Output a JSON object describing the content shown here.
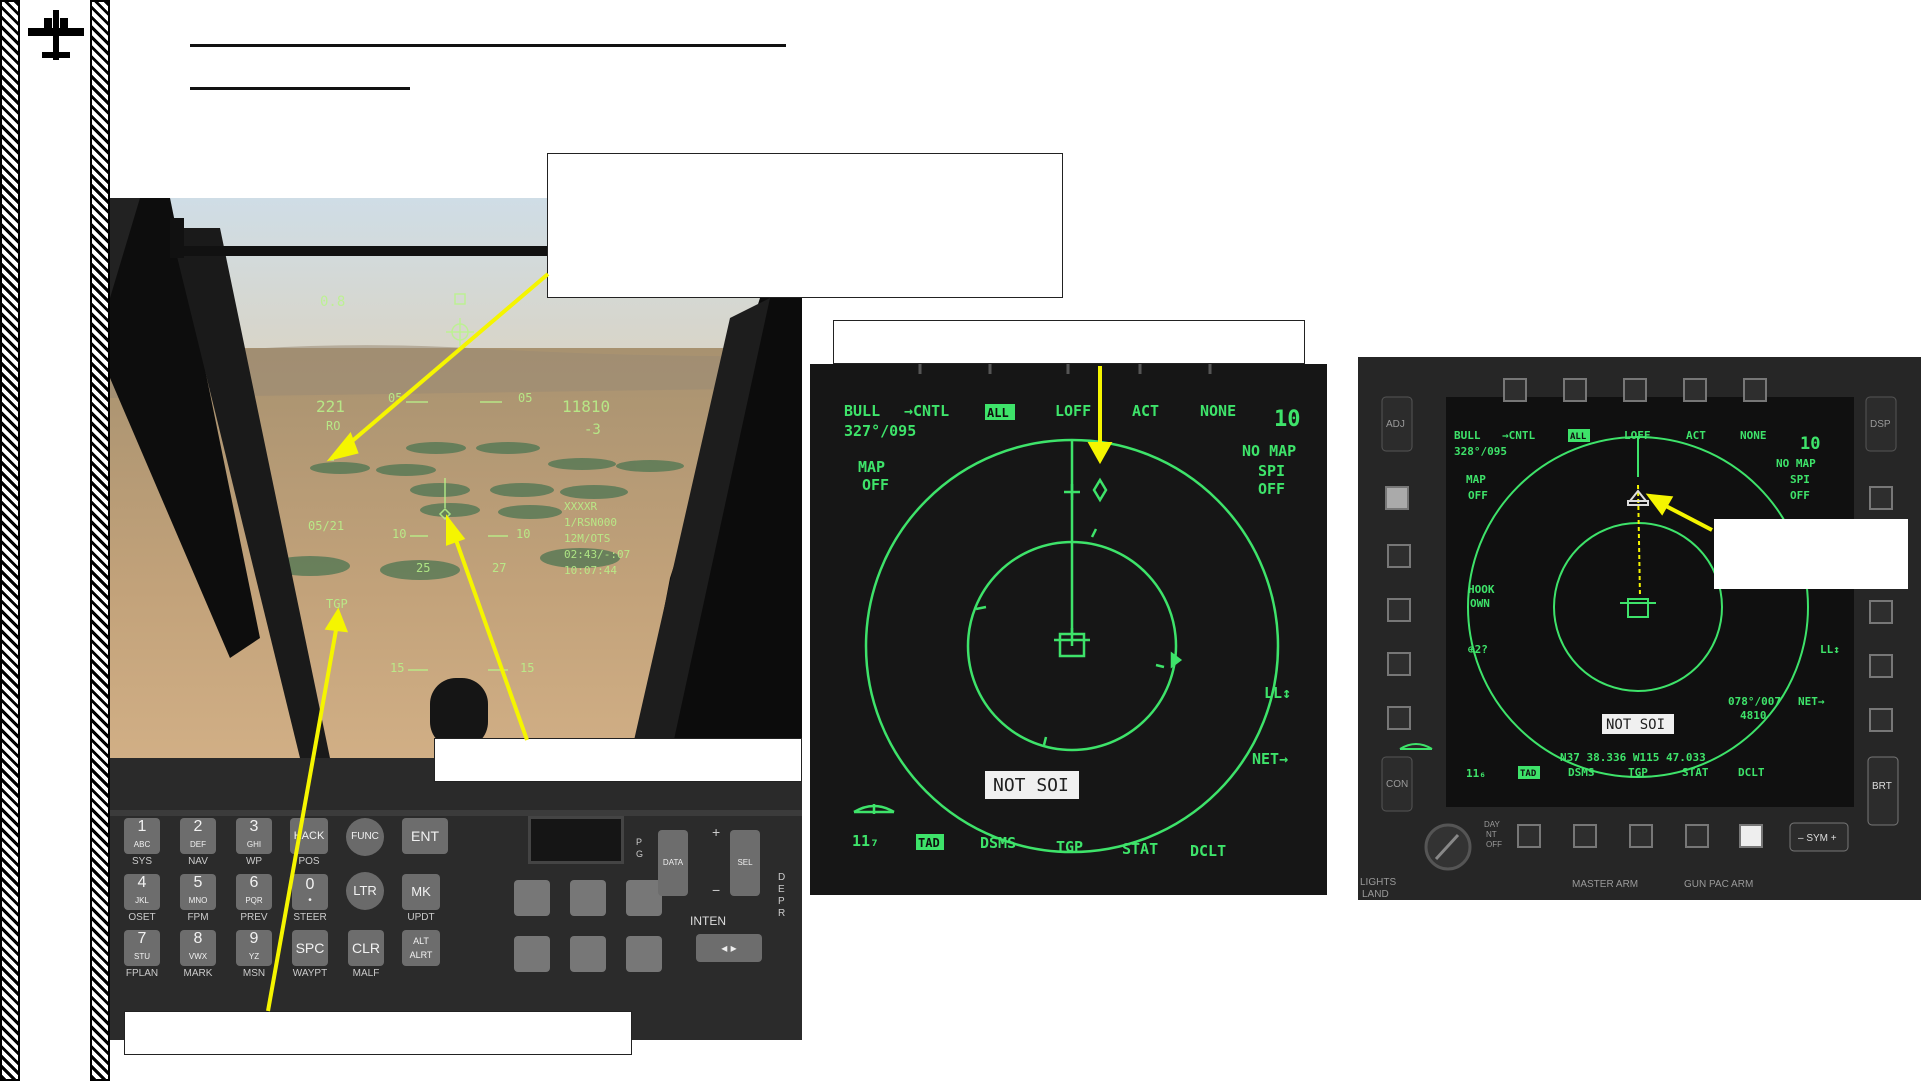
{
  "hud": {
    "tl": "0.8",
    "spd": "221",
    "spd_sub": "RO",
    "alt": "11810",
    "alt_sub": "-3",
    "pitch_l": "05",
    "pitch_r": "05",
    "dist": "05/21",
    "rung_10l": "10",
    "rung_10r": "10",
    "info1": "XXXXR",
    "info2": "1/RSN000",
    "info3": "12M/OTS",
    "info4": "02:43/-:07",
    "info5": "10:07:44",
    "hdg1": "25",
    "hdg2": "27",
    "tgp": "TGP",
    "rung_15l": "15",
    "rung_15r": "15"
  },
  "cdu": {
    "keys": [
      {
        "main": "1",
        "sub": "ABC",
        "below": "SYS"
      },
      {
        "main": "2",
        "sub": "DEF",
        "below": "NAV"
      },
      {
        "main": "3",
        "sub": "GHI",
        "below": "WP"
      },
      {
        "main": "HACK",
        "sub": "",
        "below": "POS"
      },
      {
        "main": "4",
        "sub": "JKL",
        "below": "OSET"
      },
      {
        "main": "5",
        "sub": "MNO",
        "below": "FPM"
      },
      {
        "main": "6",
        "sub": "PQR",
        "below": "PREV"
      },
      {
        "main": "0",
        "sub": "",
        "below": "STEER"
      },
      {
        "main": "7",
        "sub": "STU",
        "below": "FPLAN"
      },
      {
        "main": "8",
        "sub": "VWX",
        "below": "MARK"
      },
      {
        "main": "9",
        "sub": "YZ",
        "below": "MSN"
      },
      {
        "main": "SPC",
        "sub": "",
        "below": "WAYPT"
      }
    ],
    "func": "FUNC",
    "ent": "ENT",
    "ltr": "LTR",
    "mk": "MK",
    "updt": "UPDT",
    "clr": "CLR",
    "malf": "MALF",
    "altalrt": "ALT ALRT",
    "pg": "P G",
    "data": "DATA",
    "sel": "SEL",
    "inten": "INTEN",
    "plus": "+",
    "minus": "−",
    "dep": "DEPR"
  },
  "mfcd1": {
    "bull": "BULL",
    "cntl": "→CNTL",
    "all": "ALL",
    "loff": "LOFF",
    "act": "ACT",
    "none": "NONE",
    "range": "10",
    "bearing": "327°/095",
    "map": "MAP",
    "map_state": "OFF",
    "nomap": "NO MAP",
    "spi": "SPI",
    "spi_state": "OFF",
    "ll": "LL↕",
    "net": "NET→",
    "notsoi": "NOT SOI",
    "own_id": "11₇",
    "tad": "TAD",
    "dsms": "DSMS",
    "tgp": "TGP",
    "stat": "STAT",
    "dclt": "DCLT"
  },
  "mfcd2": {
    "bull": "BULL",
    "cntl": "→CNTL",
    "all": "ALL",
    "loff": "LOFF",
    "act": "ACT",
    "none": "NONE",
    "range": "10",
    "bearing": "328°/095",
    "map": "MAP",
    "map_state": "OFF",
    "nomap": "NO MAP",
    "spi": "SPI",
    "spi_state": "OFF",
    "hook": "HOOK",
    "hook_state": "OWN",
    "sym": "⊕2?",
    "ll": "LL↕",
    "hook_info1": "078°/007",
    "hook_info2": "4810",
    "net": "NET→",
    "notsoi": "NOT SOI",
    "coords": "N37 38.336 W115 47.033",
    "own_id": "11₆",
    "tad": "TAD",
    "dsms": "DSMS",
    "tgp": "TGP",
    "stat": "STAT",
    "dclt": "DCLT",
    "adj": "ADJ",
    "dsp": "DSP",
    "con": "CON",
    "brt": "BRT",
    "sym_rocker": "– SYM +",
    "day": "DAY",
    "nt": "NT",
    "off": "OFF",
    "lights": "LIGHTS",
    "land": "LAND",
    "master_arm": "MASTER ARM",
    "gun_pac_arm": "GUN PAC ARM"
  },
  "colors": {
    "mfcd_green": "#3ee36a",
    "hud_green": "#b9f58a",
    "arrow_yellow": "#f5f500"
  }
}
